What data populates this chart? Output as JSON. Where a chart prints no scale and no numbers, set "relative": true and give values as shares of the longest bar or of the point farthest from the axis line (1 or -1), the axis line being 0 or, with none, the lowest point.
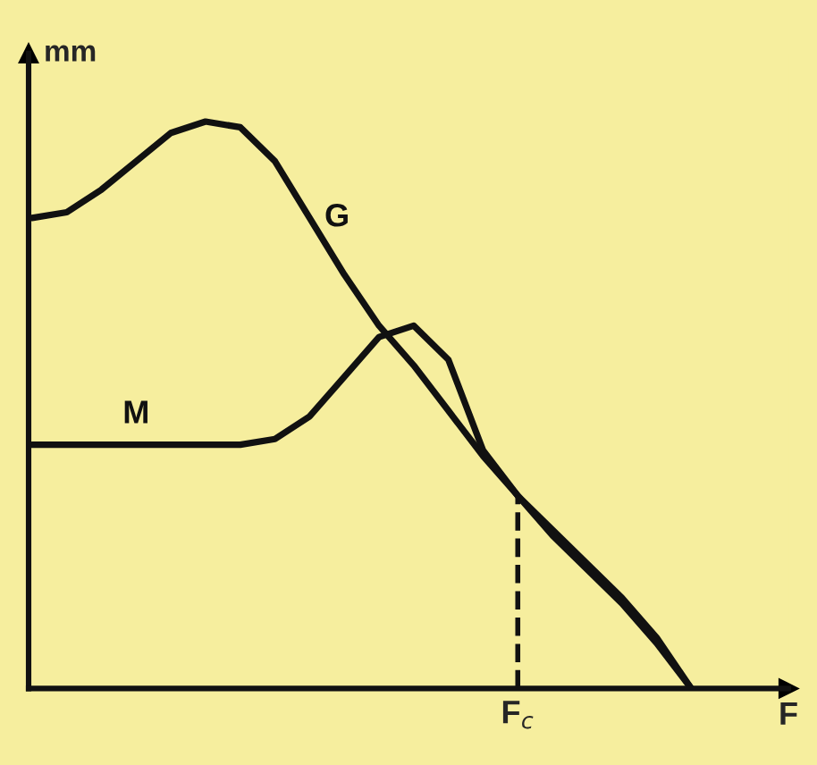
{
  "chart_data": {
    "type": "line",
    "relative": true,
    "xlabel": "F",
    "ylabel": "mm",
    "categories": [
      null,
      null,
      null,
      null,
      null,
      null,
      null,
      null,
      null,
      null,
      null,
      null,
      null,
      null,
      null,
      null,
      null,
      null,
      null,
      null
    ],
    "series": [
      {
        "name": "G",
        "color": "#111111",
        "values": [
          0.83,
          0.84,
          0.88,
          0.93,
          0.98,
          1.0,
          0.99,
          0.93,
          0.83,
          0.73,
          0.64,
          0.57,
          0.49,
          0.41,
          0.34,
          0.28,
          0.22,
          0.16,
          0.09,
          0
        ]
      },
      {
        "name": "M",
        "color": "#111111",
        "values": [
          0.43,
          0.43,
          0.43,
          0.43,
          0.43,
          0.43,
          0.43,
          0.44,
          0.48,
          0.55,
          0.62,
          0.64,
          0.58,
          0.42,
          0.34,
          0.27,
          0.21,
          0.15,
          0.08,
          0
        ]
      }
    ],
    "annotations": [
      "F$_{c}$"
    ],
    "legend": false,
    "marker": "none",
    "line_style": "solid"
  }
}
